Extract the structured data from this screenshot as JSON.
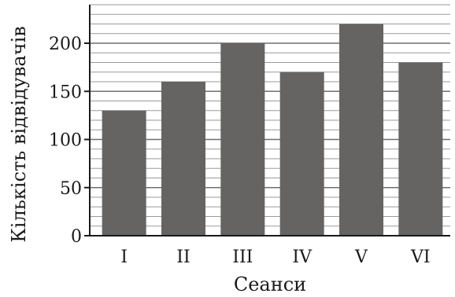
{
  "chart_data": {
    "type": "bar",
    "title": "",
    "categories": [
      "I",
      "II",
      "III",
      "IV",
      "V",
      "VI"
    ],
    "values": [
      130,
      160,
      200,
      170,
      220,
      180
    ],
    "xlabel": "Сеанси",
    "ylabel": "Кількість відвідувачів",
    "ylim": [
      0,
      240
    ],
    "yticks": [
      0,
      50,
      100,
      150,
      200
    ],
    "minor_grid_step": 10,
    "grid": true,
    "legend": "none",
    "colors": {
      "bar": "#656463",
      "grid": "#9a9a9a",
      "axis": "#1a1a1a"
    }
  }
}
